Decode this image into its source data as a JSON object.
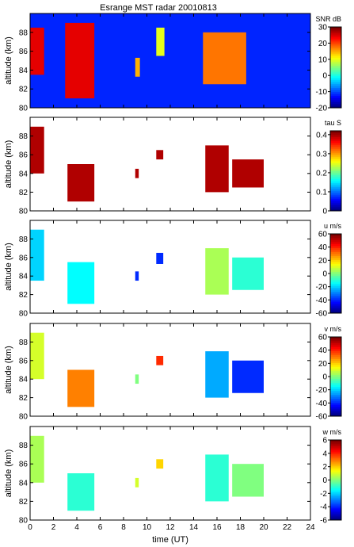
{
  "figure_title": "Esrange MST radar 20010813",
  "chart_data": [
    {
      "type": "heatmap",
      "ylabel": "altitude (km)",
      "ylim": [
        80,
        90
      ],
      "yticks": [
        80,
        82,
        84,
        86,
        88
      ],
      "xlim": [
        0,
        24
      ],
      "xticks": [
        0,
        2,
        4,
        6,
        8,
        10,
        12,
        14,
        16,
        18,
        20,
        22,
        24
      ],
      "colorbar": {
        "label": "SNR dB",
        "range": [
          -20,
          30
        ],
        "ticks": [
          30,
          20,
          10,
          0,
          -10,
          -20
        ]
      },
      "background_level": -12,
      "regions": [
        {
          "x": [
            0,
            1.2
          ],
          "y": [
            83.5,
            88.5
          ],
          "level": 25
        },
        {
          "x": [
            3.0,
            5.5
          ],
          "y": [
            81,
            89
          ],
          "level": 25
        },
        {
          "x": [
            9.0,
            9.4
          ],
          "y": [
            83.3,
            85.3
          ],
          "level": 15
        },
        {
          "x": [
            10.8,
            11.5
          ],
          "y": [
            85.5,
            88.5
          ],
          "level": 10
        },
        {
          "x": [
            14.8,
            18.5
          ],
          "y": [
            82.5,
            88
          ],
          "level": 18
        }
      ]
    },
    {
      "type": "heatmap",
      "ylabel": "altitude (km)",
      "ylim": [
        80,
        90
      ],
      "yticks": [
        80,
        82,
        84,
        86,
        88
      ],
      "xlim": [
        0,
        24
      ],
      "xticks": [
        0,
        2,
        4,
        6,
        8,
        10,
        12,
        14,
        16,
        18,
        20,
        22,
        24
      ],
      "colorbar": {
        "label": "tau S",
        "range": [
          0,
          0.42
        ],
        "ticks": [
          0.4,
          0.3,
          0.2,
          0.1,
          0
        ]
      },
      "regions": [
        {
          "x": [
            0,
            1.2
          ],
          "y": [
            84,
            89
          ],
          "level": 0.4
        },
        {
          "x": [
            3.2,
            5.5
          ],
          "y": [
            81,
            85
          ],
          "level": 0.4
        },
        {
          "x": [
            9.0,
            9.3
          ],
          "y": [
            83.5,
            84.5
          ],
          "level": 0.4
        },
        {
          "x": [
            10.8,
            11.4
          ],
          "y": [
            85.5,
            86.5
          ],
          "level": 0.4
        },
        {
          "x": [
            15.0,
            17.0
          ],
          "y": [
            82,
            87
          ],
          "level": 0.4
        },
        {
          "x": [
            17.3,
            20.0
          ],
          "y": [
            82.5,
            85.5
          ],
          "level": 0.4
        }
      ]
    },
    {
      "type": "heatmap",
      "ylabel": "altitude (km)",
      "ylim": [
        80,
        90
      ],
      "yticks": [
        80,
        82,
        84,
        86,
        88
      ],
      "xlim": [
        0,
        24
      ],
      "xticks": [
        0,
        2,
        4,
        6,
        8,
        10,
        12,
        14,
        16,
        18,
        20,
        22,
        24
      ],
      "colorbar": {
        "label": "u m/s",
        "range": [
          -60,
          60
        ],
        "ticks": [
          60,
          40,
          20,
          0,
          -20,
          -40,
          -60
        ]
      },
      "regions": [
        {
          "x": [
            0,
            1.2
          ],
          "y": [
            83.5,
            89
          ],
          "level": -20
        },
        {
          "x": [
            3.2,
            5.5
          ],
          "y": [
            81,
            85.5
          ],
          "level": -15
        },
        {
          "x": [
            9.0,
            9.3
          ],
          "y": [
            83.5,
            84.5
          ],
          "level": -40
        },
        {
          "x": [
            10.8,
            11.4
          ],
          "y": [
            85.3,
            86.5
          ],
          "level": -40
        },
        {
          "x": [
            15.0,
            17.0
          ],
          "y": [
            82,
            87
          ],
          "level": 5
        },
        {
          "x": [
            17.3,
            20.0
          ],
          "y": [
            82.5,
            86
          ],
          "level": -10
        }
      ]
    },
    {
      "type": "heatmap",
      "ylabel": "altitude (km)",
      "ylim": [
        80,
        90
      ],
      "yticks": [
        80,
        82,
        84,
        86,
        88
      ],
      "xlim": [
        0,
        24
      ],
      "xticks": [
        0,
        2,
        4,
        6,
        8,
        10,
        12,
        14,
        16,
        18,
        20,
        22,
        24
      ],
      "colorbar": {
        "label": "v m/s",
        "range": [
          -60,
          60
        ],
        "ticks": [
          60,
          40,
          20,
          0,
          -20,
          -40,
          -60
        ]
      },
      "regions": [
        {
          "x": [
            0,
            1.2
          ],
          "y": [
            84,
            89
          ],
          "level": 10
        },
        {
          "x": [
            3.2,
            5.5
          ],
          "y": [
            81,
            85
          ],
          "level": 30
        },
        {
          "x": [
            9.0,
            9.3
          ],
          "y": [
            83.5,
            84.5
          ],
          "level": 0
        },
        {
          "x": [
            10.8,
            11.4
          ],
          "y": [
            85.5,
            86.5
          ],
          "level": 40
        },
        {
          "x": [
            15.0,
            17.0
          ],
          "y": [
            82,
            87
          ],
          "level": -25
        },
        {
          "x": [
            17.3,
            20.0
          ],
          "y": [
            82.5,
            86
          ],
          "level": -40
        }
      ]
    },
    {
      "type": "heatmap",
      "ylabel": "altitude (km)",
      "ylim": [
        80,
        90
      ],
      "yticks": [
        80,
        82,
        84,
        86,
        88
      ],
      "xlim": [
        0,
        24
      ],
      "xticks": [
        0,
        2,
        4,
        6,
        8,
        10,
        12,
        14,
        16,
        18,
        20,
        22,
        24
      ],
      "xlabel": "time (UT)",
      "colorbar": {
        "label": "w m/s",
        "range": [
          -6,
          6
        ],
        "ticks": [
          6,
          4,
          2,
          0,
          -2,
          -4,
          -6
        ]
      },
      "regions": [
        {
          "x": [
            0,
            1.2
          ],
          "y": [
            84,
            89
          ],
          "level": 0.5
        },
        {
          "x": [
            3.2,
            5.5
          ],
          "y": [
            81,
            85
          ],
          "level": -1
        },
        {
          "x": [
            9.0,
            9.3
          ],
          "y": [
            83.5,
            84.5
          ],
          "level": 1
        },
        {
          "x": [
            10.8,
            11.4
          ],
          "y": [
            85.5,
            86.5
          ],
          "level": 2
        },
        {
          "x": [
            15.0,
            17.0
          ],
          "y": [
            82,
            87
          ],
          "level": -1
        },
        {
          "x": [
            17.3,
            20.0
          ],
          "y": [
            82.5,
            86
          ],
          "level": 0
        }
      ]
    }
  ]
}
